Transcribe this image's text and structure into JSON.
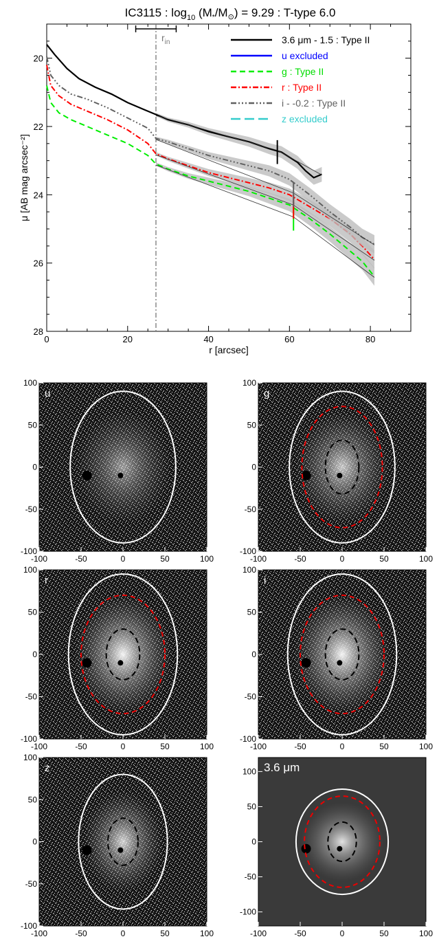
{
  "title": {
    "prefix": "IC3115 : log",
    "sub": "10",
    "mid": " (M",
    "star": "*",
    "slash": "/M",
    "sun": "⊙",
    "suffix": ") = 9.29 : T-type 6.0"
  },
  "chart_data": {
    "type": "line",
    "xlabel": "r [arcsec]",
    "ylabel": "μ [AB mag arcsec⁻²]",
    "xlim": [
      0,
      90
    ],
    "ylim": [
      28,
      19
    ],
    "y_inverted": true,
    "xticks": [
      0,
      20,
      40,
      60,
      80
    ],
    "yticks": [
      20,
      22,
      24,
      26,
      28
    ],
    "r_in": {
      "label": "r",
      "sub": "in",
      "value": 27,
      "range": [
        22,
        32
      ]
    },
    "legend_position": "top-right",
    "legend": [
      {
        "text": "3.6 μm - 1.5 : Type II",
        "color": "#000000",
        "dash": "solid"
      },
      {
        "text": "u excluded",
        "color": "#0000ff",
        "dash": "solid"
      },
      {
        "text": "g : Type II",
        "color": "#00ee00",
        "dash": "dashed"
      },
      {
        "text": "r : Type II",
        "color": "#ff0000",
        "dash": "dashdot"
      },
      {
        "text": "i - -0.2 : Type II",
        "color": "#606060",
        "dash": "dashdotdotdot"
      },
      {
        "text": "z excluded",
        "color": "#33cccc",
        "dash": "longdash"
      }
    ],
    "series": [
      {
        "name": "3.6 μm - 1.5",
        "color": "#000000",
        "x": [
          0,
          2,
          5,
          8,
          12,
          16,
          20,
          24,
          27,
          30,
          35,
          40,
          45,
          50,
          55,
          58,
          60,
          62,
          64,
          66,
          68
        ],
        "y": [
          19.6,
          19.9,
          20.3,
          20.6,
          20.85,
          21.05,
          21.3,
          21.5,
          21.65,
          21.8,
          21.95,
          22.15,
          22.3,
          22.45,
          22.65,
          22.75,
          22.9,
          23.05,
          23.3,
          23.5,
          23.4
        ],
        "break": 57
      },
      {
        "name": "g",
        "color": "#00ee00",
        "x": [
          0,
          1,
          3,
          6,
          10,
          15,
          20,
          25,
          27,
          30,
          35,
          40,
          45,
          50,
          55,
          60,
          65,
          70,
          75,
          78,
          81
        ],
        "y": [
          20.8,
          21.3,
          21.6,
          21.8,
          22.0,
          22.25,
          22.5,
          22.85,
          23.1,
          23.25,
          23.45,
          23.6,
          23.75,
          23.9,
          24.1,
          24.3,
          24.7,
          25.15,
          25.65,
          25.95,
          26.4
        ],
        "break": 61
      },
      {
        "name": "r",
        "color": "#ff0000",
        "x": [
          0,
          1,
          3,
          6,
          10,
          15,
          20,
          25,
          27,
          30,
          35,
          40,
          45,
          50,
          55,
          60,
          65,
          70,
          75,
          78,
          81
        ],
        "y": [
          20.2,
          20.8,
          21.1,
          21.35,
          21.55,
          21.8,
          22.1,
          22.5,
          22.8,
          22.95,
          23.15,
          23.35,
          23.5,
          23.65,
          23.8,
          24.0,
          24.35,
          24.7,
          25.15,
          25.5,
          25.9
        ],
        "break": 61
      },
      {
        "name": "i - -0.2",
        "color": "#606060",
        "x": [
          0,
          1,
          3,
          6,
          10,
          15,
          20,
          25,
          27,
          30,
          35,
          40,
          45,
          50,
          55,
          60,
          65,
          70,
          75,
          78,
          81
        ],
        "y": [
          19.95,
          20.5,
          20.8,
          21.05,
          21.2,
          21.45,
          21.75,
          22.05,
          22.35,
          22.45,
          22.65,
          22.85,
          23.0,
          23.15,
          23.3,
          23.55,
          24.0,
          24.5,
          24.95,
          25.25,
          25.45
        ],
        "break": 61
      }
    ]
  },
  "panels": [
    {
      "band": "u",
      "ylim": [
        -100,
        100
      ],
      "xticks": [
        -100,
        -50,
        0,
        50,
        100
      ],
      "yticks": [
        100,
        50,
        0,
        -50,
        -100
      ]
    },
    {
      "band": "g",
      "ylim": [
        -100,
        100
      ],
      "xticks": [
        -100,
        -50,
        0,
        50,
        100
      ],
      "yticks": [
        100,
        50,
        0,
        -50,
        -100
      ]
    },
    {
      "band": "r",
      "ylim": [
        -100,
        100
      ],
      "xticks": [
        -100,
        -50,
        0,
        50,
        100
      ],
      "yticks": [
        100,
        50,
        0,
        -50,
        -100
      ]
    },
    {
      "band": "i",
      "ylim": [
        -100,
        100
      ],
      "xticks": [
        -100,
        -50,
        0,
        50,
        100
      ],
      "yticks": [
        100,
        50,
        0,
        -50,
        -100
      ]
    },
    {
      "band": "z",
      "ylim": [
        -100,
        100
      ],
      "xticks": [
        -100,
        -50,
        0,
        50,
        100
      ],
      "yticks": [
        100,
        50,
        0,
        -50,
        -100
      ]
    },
    {
      "band": "3.6 μm",
      "ylim": [
        -120,
        120
      ],
      "xticks": [
        -100,
        -50,
        0,
        50,
        100
      ],
      "yticks": [
        100,
        50,
        0,
        -50,
        -100
      ]
    }
  ]
}
